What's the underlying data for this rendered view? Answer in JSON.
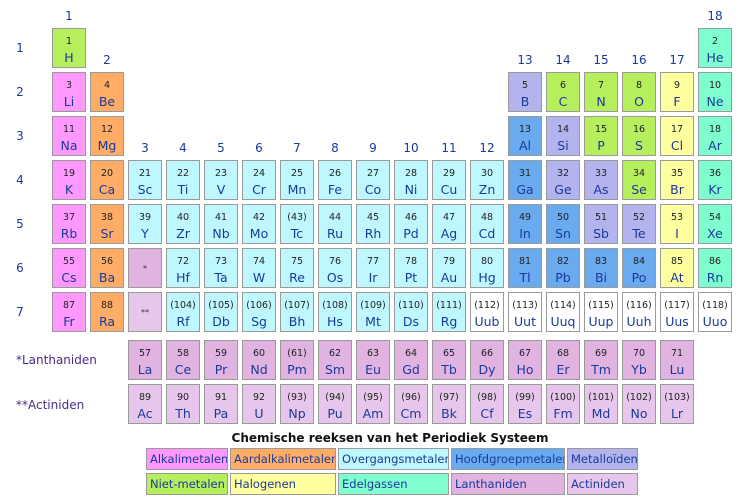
{
  "groups": [
    "1",
    "2",
    "3",
    "4",
    "5",
    "6",
    "7",
    "8",
    "9",
    "10",
    "11",
    "12",
    "13",
    "14",
    "15",
    "16",
    "17",
    "18"
  ],
  "periods": [
    "1",
    "2",
    "3",
    "4",
    "5",
    "6",
    "7"
  ],
  "colors": {
    "alkali": "#ff99ff",
    "alkaline": "#ffad66",
    "transition": "#bff7ff",
    "main": "#6aaaee",
    "metalloid": "#b3b3ee",
    "nonmetal": "#b6ee5c",
    "halogen": "#ffff9f",
    "noble": "#7fffcf",
    "lanthanide": "#e0b3e0",
    "actinide": "#e6c6ea",
    "unknown": "#ffffff"
  },
  "placeholders": {
    "lanthanide": "*",
    "actinide": "**"
  },
  "series_labels": {
    "lanthanides": "*Lanthaniden",
    "actinides": "**Actiniden"
  },
  "legend_title": "Chemische reeksen van het Periodiek Systeem",
  "legend": [
    {
      "label": "Alkalimetalen",
      "cat": "alkali"
    },
    {
      "label": "Aardalkalimetalen",
      "cat": "alkaline"
    },
    {
      "label": "Overgangsmetalen",
      "cat": "transition"
    },
    {
      "label": "Hoofdgroepmetalen",
      "cat": "main"
    },
    {
      "label": "Metalloïden",
      "cat": "metalloid"
    },
    {
      "label": "Niet-metalen",
      "cat": "nonmetal"
    },
    {
      "label": "Halogenen",
      "cat": "halogen"
    },
    {
      "label": "Edelgassen",
      "cat": "noble"
    },
    {
      "label": "Lanthaniden",
      "cat": "lanthanide"
    },
    {
      "label": "Actiniden",
      "cat": "actinide"
    }
  ],
  "elements": [
    {
      "n": "1",
      "s": "H",
      "p": 1,
      "g": 1,
      "c": "nonmetal"
    },
    {
      "n": "2",
      "s": "He",
      "p": 1,
      "g": 18,
      "c": "noble"
    },
    {
      "n": "3",
      "s": "Li",
      "p": 2,
      "g": 1,
      "c": "alkali"
    },
    {
      "n": "4",
      "s": "Be",
      "p": 2,
      "g": 2,
      "c": "alkaline"
    },
    {
      "n": "5",
      "s": "B",
      "p": 2,
      "g": 13,
      "c": "metalloid"
    },
    {
      "n": "6",
      "s": "C",
      "p": 2,
      "g": 14,
      "c": "nonmetal"
    },
    {
      "n": "7",
      "s": "N",
      "p": 2,
      "g": 15,
      "c": "nonmetal"
    },
    {
      "n": "8",
      "s": "O",
      "p": 2,
      "g": 16,
      "c": "nonmetal"
    },
    {
      "n": "9",
      "s": "F",
      "p": 2,
      "g": 17,
      "c": "halogen"
    },
    {
      "n": "10",
      "s": "Ne",
      "p": 2,
      "g": 18,
      "c": "noble"
    },
    {
      "n": "11",
      "s": "Na",
      "p": 3,
      "g": 1,
      "c": "alkali"
    },
    {
      "n": "12",
      "s": "Mg",
      "p": 3,
      "g": 2,
      "c": "alkaline"
    },
    {
      "n": "13",
      "s": "Al",
      "p": 3,
      "g": 13,
      "c": "main"
    },
    {
      "n": "14",
      "s": "Si",
      "p": 3,
      "g": 14,
      "c": "metalloid"
    },
    {
      "n": "15",
      "s": "P",
      "p": 3,
      "g": 15,
      "c": "nonmetal"
    },
    {
      "n": "16",
      "s": "S",
      "p": 3,
      "g": 16,
      "c": "nonmetal"
    },
    {
      "n": "17",
      "s": "Cl",
      "p": 3,
      "g": 17,
      "c": "halogen"
    },
    {
      "n": "18",
      "s": "Ar",
      "p": 3,
      "g": 18,
      "c": "noble"
    },
    {
      "n": "19",
      "s": "K",
      "p": 4,
      "g": 1,
      "c": "alkali"
    },
    {
      "n": "20",
      "s": "Ca",
      "p": 4,
      "g": 2,
      "c": "alkaline"
    },
    {
      "n": "21",
      "s": "Sc",
      "p": 4,
      "g": 3,
      "c": "transition"
    },
    {
      "n": "22",
      "s": "Ti",
      "p": 4,
      "g": 4,
      "c": "transition"
    },
    {
      "n": "23",
      "s": "V",
      "p": 4,
      "g": 5,
      "c": "transition"
    },
    {
      "n": "24",
      "s": "Cr",
      "p": 4,
      "g": 6,
      "c": "transition"
    },
    {
      "n": "25",
      "s": "Mn",
      "p": 4,
      "g": 7,
      "c": "transition"
    },
    {
      "n": "26",
      "s": "Fe",
      "p": 4,
      "g": 8,
      "c": "transition"
    },
    {
      "n": "27",
      "s": "Co",
      "p": 4,
      "g": 9,
      "c": "transition"
    },
    {
      "n": "28",
      "s": "Ni",
      "p": 4,
      "g": 10,
      "c": "transition"
    },
    {
      "n": "29",
      "s": "Cu",
      "p": 4,
      "g": 11,
      "c": "transition"
    },
    {
      "n": "30",
      "s": "Zn",
      "p": 4,
      "g": 12,
      "c": "transition"
    },
    {
      "n": "31",
      "s": "Ga",
      "p": 4,
      "g": 13,
      "c": "main"
    },
    {
      "n": "32",
      "s": "Ge",
      "p": 4,
      "g": 14,
      "c": "metalloid"
    },
    {
      "n": "33",
      "s": "As",
      "p": 4,
      "g": 15,
      "c": "metalloid"
    },
    {
      "n": "34",
      "s": "Se",
      "p": 4,
      "g": 16,
      "c": "nonmetal"
    },
    {
      "n": "35",
      "s": "Br",
      "p": 4,
      "g": 17,
      "c": "halogen"
    },
    {
      "n": "36",
      "s": "Kr",
      "p": 4,
      "g": 18,
      "c": "noble"
    },
    {
      "n": "37",
      "s": "Rb",
      "p": 5,
      "g": 1,
      "c": "alkali"
    },
    {
      "n": "38",
      "s": "Sr",
      "p": 5,
      "g": 2,
      "c": "alkaline"
    },
    {
      "n": "39",
      "s": "Y",
      "p": 5,
      "g": 3,
      "c": "transition"
    },
    {
      "n": "40",
      "s": "Zr",
      "p": 5,
      "g": 4,
      "c": "transition"
    },
    {
      "n": "41",
      "s": "Nb",
      "p": 5,
      "g": 5,
      "c": "transition"
    },
    {
      "n": "42",
      "s": "Mo",
      "p": 5,
      "g": 6,
      "c": "transition"
    },
    {
      "n": "(43)",
      "s": "Tc",
      "p": 5,
      "g": 7,
      "c": "transition"
    },
    {
      "n": "44",
      "s": "Ru",
      "p": 5,
      "g": 8,
      "c": "transition"
    },
    {
      "n": "45",
      "s": "Rh",
      "p": 5,
      "g": 9,
      "c": "transition"
    },
    {
      "n": "46",
      "s": "Pd",
      "p": 5,
      "g": 10,
      "c": "transition"
    },
    {
      "n": "47",
      "s": "Ag",
      "p": 5,
      "g": 11,
      "c": "transition"
    },
    {
      "n": "48",
      "s": "Cd",
      "p": 5,
      "g": 12,
      "c": "transition"
    },
    {
      "n": "49",
      "s": "In",
      "p": 5,
      "g": 13,
      "c": "main"
    },
    {
      "n": "50",
      "s": "Sn",
      "p": 5,
      "g": 14,
      "c": "main"
    },
    {
      "n": "51",
      "s": "Sb",
      "p": 5,
      "g": 15,
      "c": "metalloid"
    },
    {
      "n": "52",
      "s": "Te",
      "p": 5,
      "g": 16,
      "c": "metalloid"
    },
    {
      "n": "53",
      "s": "I",
      "p": 5,
      "g": 17,
      "c": "halogen"
    },
    {
      "n": "54",
      "s": "Xe",
      "p": 5,
      "g": 18,
      "c": "noble"
    },
    {
      "n": "55",
      "s": "Cs",
      "p": 6,
      "g": 1,
      "c": "alkali"
    },
    {
      "n": "56",
      "s": "Ba",
      "p": 6,
      "g": 2,
      "c": "alkaline"
    },
    {
      "n": "72",
      "s": "Hf",
      "p": 6,
      "g": 4,
      "c": "transition"
    },
    {
      "n": "73",
      "s": "Ta",
      "p": 6,
      "g": 5,
      "c": "transition"
    },
    {
      "n": "74",
      "s": "W",
      "p": 6,
      "g": 6,
      "c": "transition"
    },
    {
      "n": "75",
      "s": "Re",
      "p": 6,
      "g": 7,
      "c": "transition"
    },
    {
      "n": "76",
      "s": "Os",
      "p": 6,
      "g": 8,
      "c": "transition"
    },
    {
      "n": "77",
      "s": "Ir",
      "p": 6,
      "g": 9,
      "c": "transition"
    },
    {
      "n": "78",
      "s": "Pt",
      "p": 6,
      "g": 10,
      "c": "transition"
    },
    {
      "n": "79",
      "s": "Au",
      "p": 6,
      "g": 11,
      "c": "transition"
    },
    {
      "n": "80",
      "s": "Hg",
      "p": 6,
      "g": 12,
      "c": "transition"
    },
    {
      "n": "81",
      "s": "Tl",
      "p": 6,
      "g": 13,
      "c": "main"
    },
    {
      "n": "82",
      "s": "Pb",
      "p": 6,
      "g": 14,
      "c": "main"
    },
    {
      "n": "83",
      "s": "Bi",
      "p": 6,
      "g": 15,
      "c": "main"
    },
    {
      "n": "84",
      "s": "Po",
      "p": 6,
      "g": 16,
      "c": "main"
    },
    {
      "n": "85",
      "s": "At",
      "p": 6,
      "g": 17,
      "c": "halogen"
    },
    {
      "n": "86",
      "s": "Rn",
      "p": 6,
      "g": 18,
      "c": "noble"
    },
    {
      "n": "87",
      "s": "Fr",
      "p": 7,
      "g": 1,
      "c": "alkali"
    },
    {
      "n": "88",
      "s": "Ra",
      "p": 7,
      "g": 2,
      "c": "alkaline"
    },
    {
      "n": "(104)",
      "s": "Rf",
      "p": 7,
      "g": 4,
      "c": "transition"
    },
    {
      "n": "(105)",
      "s": "Db",
      "p": 7,
      "g": 5,
      "c": "transition"
    },
    {
      "n": "(106)",
      "s": "Sg",
      "p": 7,
      "g": 6,
      "c": "transition"
    },
    {
      "n": "(107)",
      "s": "Bh",
      "p": 7,
      "g": 7,
      "c": "transition"
    },
    {
      "n": "(108)",
      "s": "Hs",
      "p": 7,
      "g": 8,
      "c": "transition"
    },
    {
      "n": "(109)",
      "s": "Mt",
      "p": 7,
      "g": 9,
      "c": "transition"
    },
    {
      "n": "(110)",
      "s": "Ds",
      "p": 7,
      "g": 10,
      "c": "transition"
    },
    {
      "n": "(111)",
      "s": "Rg",
      "p": 7,
      "g": 11,
      "c": "transition"
    },
    {
      "n": "(112)",
      "s": "Uub",
      "p": 7,
      "g": 12,
      "c": "unknown"
    },
    {
      "n": "(113)",
      "s": "Uut",
      "p": 7,
      "g": 13,
      "c": "unknown"
    },
    {
      "n": "(114)",
      "s": "Uuq",
      "p": 7,
      "g": 14,
      "c": "unknown"
    },
    {
      "n": "(115)",
      "s": "Uup",
      "p": 7,
      "g": 15,
      "c": "unknown"
    },
    {
      "n": "(116)",
      "s": "Uuh",
      "p": 7,
      "g": 16,
      "c": "unknown"
    },
    {
      "n": "(117)",
      "s": "Uus",
      "p": 7,
      "g": 17,
      "c": "unknown"
    },
    {
      "n": "(118)",
      "s": "Uuo",
      "p": 7,
      "g": 18,
      "c": "unknown"
    }
  ],
  "lanthanides": [
    {
      "n": "57",
      "s": "La"
    },
    {
      "n": "58",
      "s": "Ce"
    },
    {
      "n": "59",
      "s": "Pr"
    },
    {
      "n": "60",
      "s": "Nd"
    },
    {
      "n": "(61)",
      "s": "Pm"
    },
    {
      "n": "62",
      "s": "Sm"
    },
    {
      "n": "63",
      "s": "Eu"
    },
    {
      "n": "64",
      "s": "Gd"
    },
    {
      "n": "65",
      "s": "Tb"
    },
    {
      "n": "66",
      "s": "Dy"
    },
    {
      "n": "67",
      "s": "Ho"
    },
    {
      "n": "68",
      "s": "Er"
    },
    {
      "n": "69",
      "s": "Tm"
    },
    {
      "n": "70",
      "s": "Yb"
    },
    {
      "n": "71",
      "s": "Lu"
    }
  ],
  "actinides": [
    {
      "n": "89",
      "s": "Ac"
    },
    {
      "n": "90",
      "s": "Th"
    },
    {
      "n": "91",
      "s": "Pa"
    },
    {
      "n": "92",
      "s": "U"
    },
    {
      "n": "(93)",
      "s": "Np"
    },
    {
      "n": "(94)",
      "s": "Pu"
    },
    {
      "n": "(95)",
      "s": "Am"
    },
    {
      "n": "(96)",
      "s": "Cm"
    },
    {
      "n": "(97)",
      "s": "Bk"
    },
    {
      "n": "(98)",
      "s": "Cf"
    },
    {
      "n": "(99)",
      "s": "Es"
    },
    {
      "n": "(100)",
      "s": "Fm"
    },
    {
      "n": "(101)",
      "s": "Md"
    },
    {
      "n": "(102)",
      "s": "No"
    },
    {
      "n": "(103)",
      "s": "Lr"
    }
  ]
}
